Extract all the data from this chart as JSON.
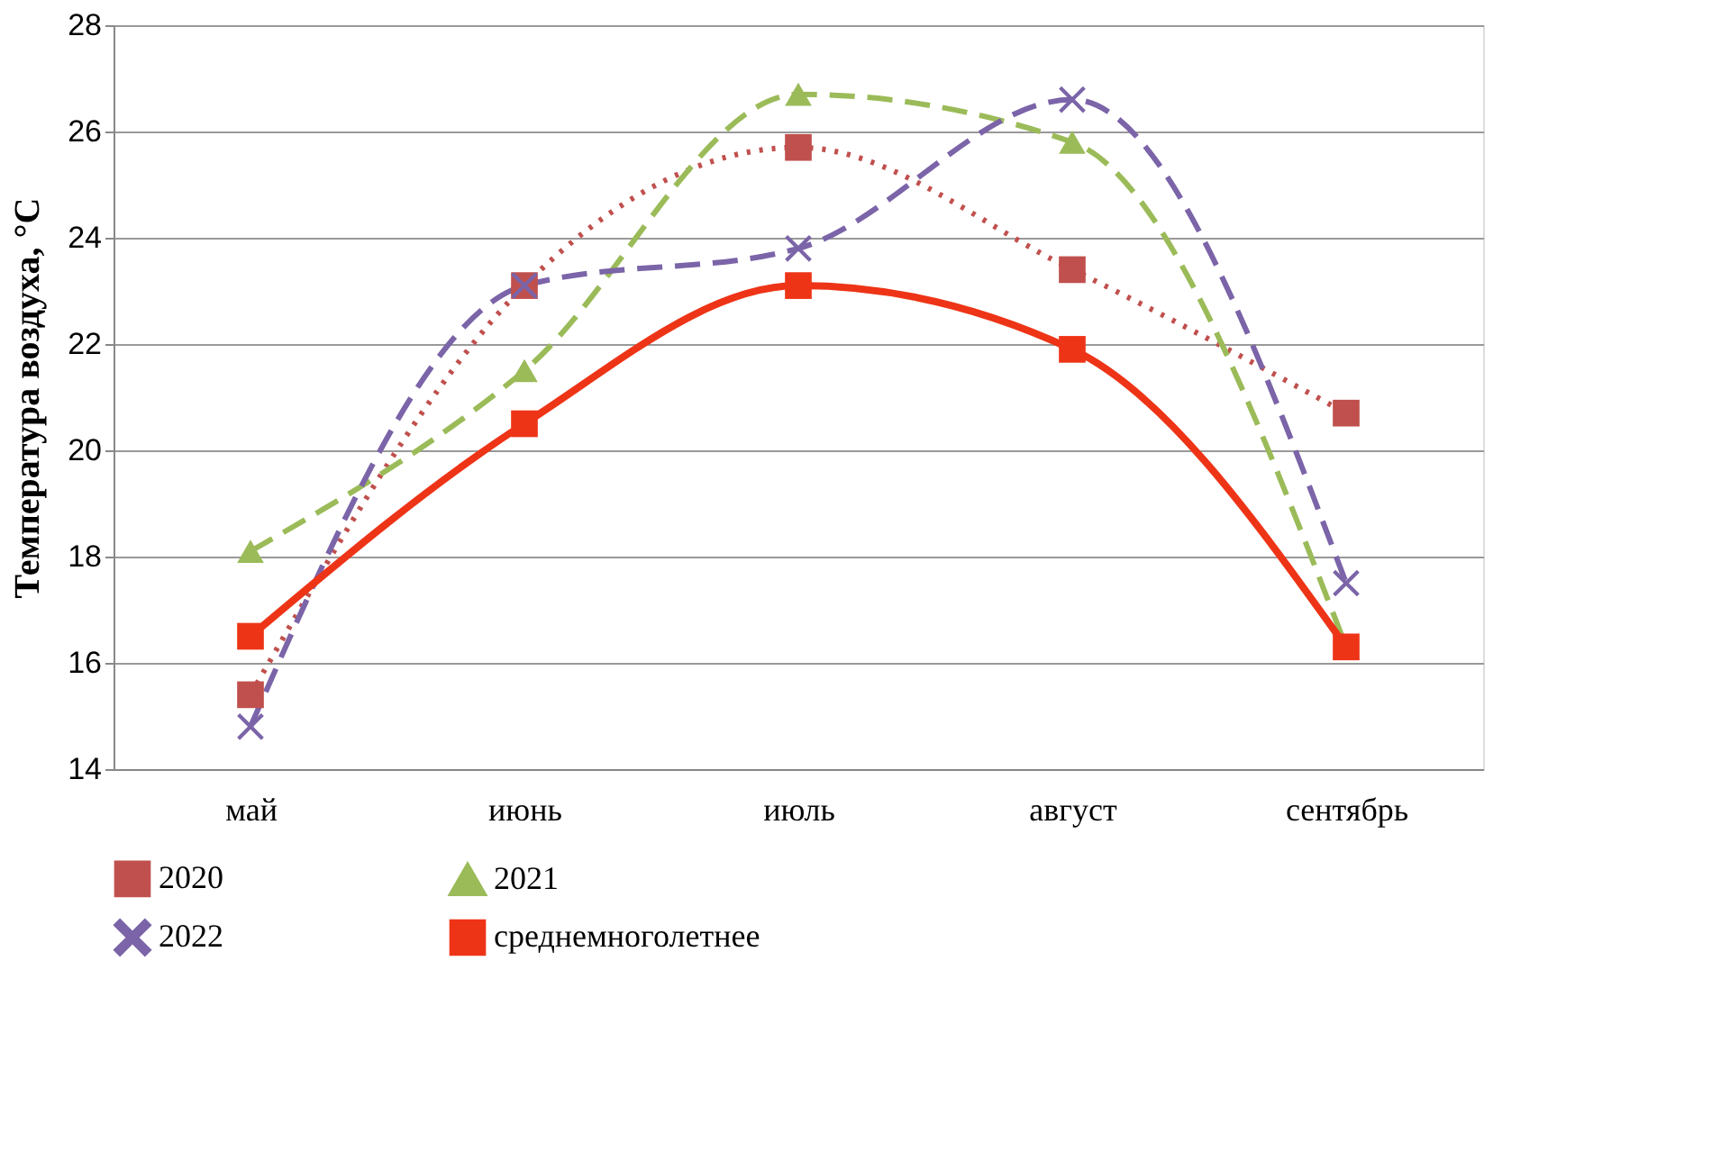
{
  "chart_data": {
    "type": "line",
    "ylabel": "Температура воздуха, °С",
    "categories": [
      "май",
      "июнь",
      "июль",
      "август",
      "сентябрь"
    ],
    "ylim": [
      14,
      28
    ],
    "yticks": [
      14,
      16,
      18,
      20,
      22,
      24,
      26,
      28
    ],
    "grid": "y",
    "legend": "bottom",
    "series": [
      {
        "name": "2020",
        "color": "#c0504d",
        "values": [
          15.4,
          23.1,
          25.7,
          23.4,
          20.7
        ],
        "marker": "square",
        "line_style": "dotted"
      },
      {
        "name": "2021",
        "color": "#9bbb59",
        "values": [
          18.1,
          21.5,
          26.7,
          25.8,
          16.3
        ],
        "marker": "triangle",
        "line_style": "dashed"
      },
      {
        "name": "2022",
        "color": "#7b64a8",
        "values": [
          14.8,
          23.1,
          23.8,
          26.6,
          17.5
        ],
        "marker": "cross",
        "line_style": "dashed"
      },
      {
        "name": "среднемноголетнее",
        "color": "#ee3417",
        "values": [
          16.5,
          20.5,
          23.1,
          21.9,
          16.3
        ],
        "marker": "square",
        "line_style": "solid"
      }
    ]
  }
}
